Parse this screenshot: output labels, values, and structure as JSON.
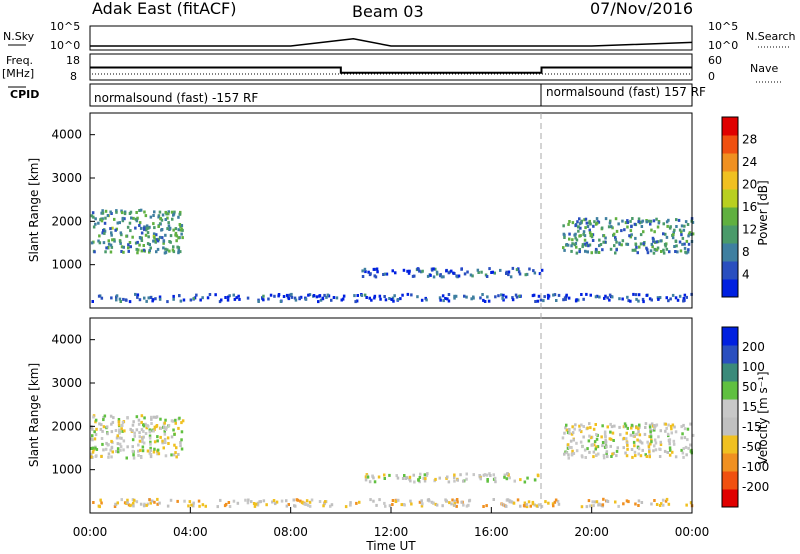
{
  "header": {
    "station": "Adak East (fitACF)",
    "beam": "Beam 03",
    "date": "07/Nov/2016"
  },
  "panels": {
    "nsky": {
      "label": "N.Sky",
      "right_label": "N.Search",
      "ticks_left": [
        "10^5",
        "10^0"
      ],
      "ticks_right": [
        "10^5",
        "10^0"
      ]
    },
    "freq": {
      "label": "Freq.",
      "unit": "[MHz]",
      "right_label": "Nave",
      "ticks_left": [
        "18",
        "8"
      ],
      "ticks_right": [
        "60",
        "0"
      ]
    },
    "cpid": {
      "label": "CPID",
      "left_text": "normalsound (fast) -157 RF",
      "right_text": "normalsound (fast) 157 RF"
    }
  },
  "colors": {
    "power": [
      "#0020e0",
      "#2a4fbf",
      "#3f7fa0",
      "#4a9a6a",
      "#60b040",
      "#b8d020",
      "#f0c020",
      "#f09020",
      "#f05010",
      "#e00000"
    ],
    "velocity": [
      "#e00000",
      "#f05010",
      "#f09020",
      "#f0c020",
      "#c0c0c0",
      "#c8c8c8",
      "#60c040",
      "#3a8a7a",
      "#2a4fbf",
      "#0020e0"
    ]
  },
  "colorbars": {
    "power": {
      "label": "Power [dB]",
      "ticks": [
        "28",
        "24",
        "20",
        "16",
        "12",
        "8",
        "4"
      ]
    },
    "velocity": {
      "label": "Velocity [m s⁻¹]",
      "ticks": [
        "200",
        "100",
        "50",
        "15",
        "-15",
        "-50",
        "-100",
        "-200"
      ]
    }
  },
  "xaxis": {
    "label": "Time UT",
    "ticks": [
      "00:00",
      "04:00",
      "08:00",
      "12:00",
      "16:00",
      "20:00",
      "00:00"
    ]
  },
  "chart_data": [
    {
      "type": "line",
      "name": "N.Sky / N.Search",
      "ylim_left": [
        1,
        100000
      ],
      "x": [
        "00:00",
        "04:00",
        "08:00",
        "10:30",
        "12:00",
        "16:00",
        "20:00",
        "24:00"
      ],
      "values": [
        1,
        1,
        1,
        100,
        1,
        1,
        1,
        10
      ]
    },
    {
      "type": "line",
      "name": "Freq.",
      "ylim": [
        8,
        18
      ],
      "x": [
        "00:00",
        "10:00",
        "10:00",
        "18:00",
        "18:00",
        "24:00"
      ],
      "values": [
        13,
        13,
        10.5,
        10.5,
        13,
        13
      ]
    },
    {
      "type": "heatmap",
      "title": "Power",
      "ylabel": "Slant Range [km]",
      "xlabel": "Time UT",
      "xlim": [
        "00:00",
        "24:00"
      ],
      "ylim": [
        0,
        4500
      ],
      "yticks": [
        "1000",
        "2000",
        "3000",
        "4000"
      ],
      "zlim": [
        0,
        30
      ],
      "regions": [
        {
          "t": [
            0,
            3.7
          ],
          "range": [
            1300,
            2300
          ],
          "level": 10
        },
        {
          "t": [
            10.8,
            18.0
          ],
          "range": [
            750,
            950
          ],
          "level": 5
        },
        {
          "t": [
            18.8,
            24.0
          ],
          "range": [
            1300,
            2100
          ],
          "level": 9
        },
        {
          "t": [
            0,
            24.0
          ],
          "range": [
            180,
            350
          ],
          "level": 4
        }
      ]
    },
    {
      "type": "heatmap",
      "title": "Velocity",
      "ylabel": "Slant Range [km]",
      "xlabel": "Time UT",
      "xlim": [
        "00:00",
        "24:00"
      ],
      "ylim": [
        0,
        4500
      ],
      "yticks": [
        "1000",
        "2000",
        "3000",
        "4000"
      ],
      "zlim": [
        -200,
        200
      ],
      "regions": [
        {
          "t": [
            0,
            3.7
          ],
          "range": [
            1300,
            2300
          ],
          "level": 0
        },
        {
          "t": [
            10.8,
            18.0
          ],
          "range": [
            750,
            950
          ],
          "level": 0
        },
        {
          "t": [
            18.8,
            24.0
          ],
          "range": [
            1300,
            2100
          ],
          "level": 0
        },
        {
          "t": [
            0,
            24.0
          ],
          "range": [
            180,
            350
          ],
          "level": -40
        }
      ]
    }
  ]
}
